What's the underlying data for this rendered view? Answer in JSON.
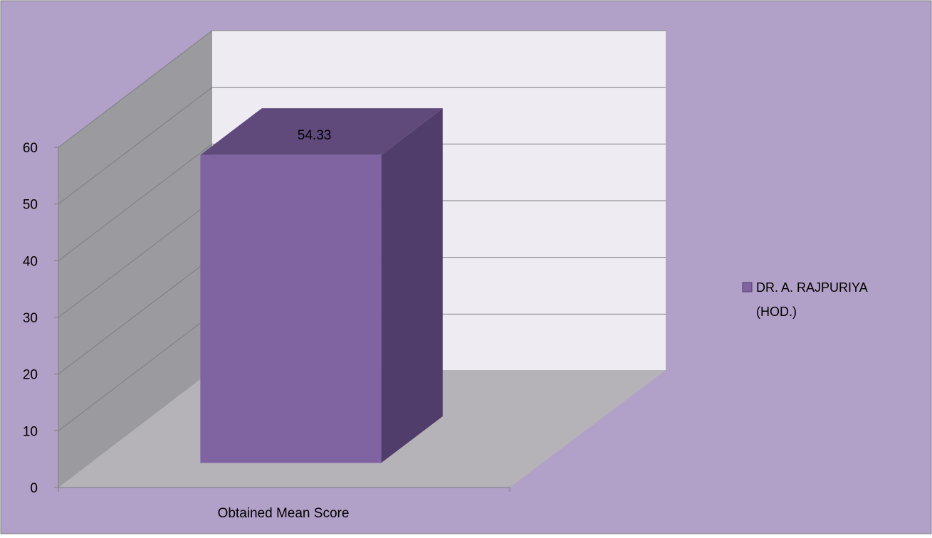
{
  "chart_data": {
    "type": "bar",
    "style": "3d-column",
    "categories": [
      "Obtained Mean Score"
    ],
    "series": [
      {
        "name": "DR. A. RAJPURIYA (HOD.)",
        "values": [
          54.33
        ],
        "color": "#8064a2"
      }
    ],
    "data_labels": [
      "54.33"
    ],
    "ylim": [
      0,
      60
    ],
    "yticks": [
      0,
      10,
      20,
      30,
      40,
      50,
      60
    ],
    "ytick_labels": [
      "0",
      "10",
      "20",
      "30",
      "40",
      "50",
      "60"
    ],
    "grid": true,
    "legend_position": "right",
    "legend_lines": [
      "DR. A. RAJPURIYA",
      "(HOD.)"
    ],
    "title": "",
    "xlabel": "",
    "ylabel": ""
  },
  "colors": {
    "chart_background": "#b1a0c7",
    "back_wall": "#eeebf2",
    "side_wall": "#9b9a9e",
    "floor": "#b5b3b8",
    "bar_front": "#8064a2",
    "bar_top": "#5f4a7b",
    "bar_side": "#503d6b",
    "axis_text": "#000000"
  }
}
